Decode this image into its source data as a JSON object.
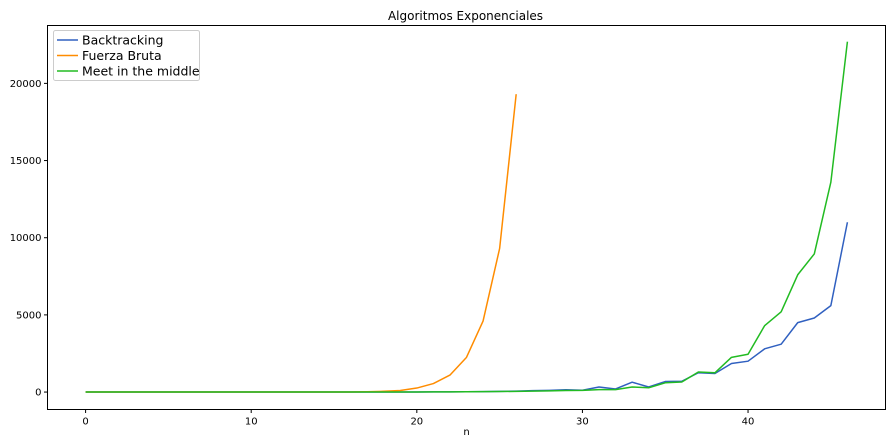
{
  "chart_data": {
    "type": "line",
    "title": "Algoritmos Exponenciales",
    "xlabel": "n",
    "ylabel": "",
    "xlim": [
      -2.3,
      48.3
    ],
    "ylim": [
      -1130,
      23750
    ],
    "xticks": [
      0,
      10,
      20,
      30,
      40
    ],
    "yticks": [
      0,
      5000,
      10000,
      15000,
      20000
    ],
    "grid": false,
    "legend_position": "top-left",
    "series": [
      {
        "name": "Backtracking",
        "color": "#3060c0",
        "x": [
          0,
          1,
          2,
          3,
          4,
          5,
          6,
          7,
          8,
          9,
          10,
          11,
          12,
          13,
          14,
          15,
          16,
          17,
          18,
          19,
          20,
          21,
          22,
          23,
          24,
          25,
          26,
          27,
          28,
          29,
          30,
          31,
          32,
          33,
          34,
          35,
          36,
          37,
          38,
          39,
          40,
          41,
          42,
          43,
          44,
          45,
          46
        ],
        "y": [
          0,
          0,
          0,
          0,
          0,
          0,
          0,
          0,
          0,
          0,
          0,
          0,
          0,
          0,
          0,
          1,
          1,
          2,
          3,
          5,
          8,
          10,
          15,
          20,
          30,
          45,
          60,
          90,
          110,
          150,
          120,
          330,
          200,
          640,
          330,
          680,
          700,
          1250,
          1200,
          1850,
          2000,
          2800,
          3100,
          4500,
          4800,
          5600,
          11000
        ]
      },
      {
        "name": "Fuerza Bruta",
        "color": "#ff8c00",
        "x": [
          0,
          1,
          2,
          3,
          4,
          5,
          6,
          7,
          8,
          9,
          10,
          11,
          12,
          13,
          14,
          15,
          16,
          17,
          18,
          19,
          20,
          21,
          22,
          23,
          24,
          25,
          26
        ],
        "y": [
          0,
          0,
          0,
          0,
          0,
          0,
          0,
          0,
          0,
          0,
          0,
          0,
          0,
          0,
          1,
          3,
          7,
          20,
          50,
          100,
          260,
          550,
          1100,
          2250,
          4600,
          9300,
          19300
        ]
      },
      {
        "name": "Meet in the middle",
        "color": "#22bb22",
        "x": [
          0,
          1,
          2,
          3,
          4,
          5,
          6,
          7,
          8,
          9,
          10,
          11,
          12,
          13,
          14,
          15,
          16,
          17,
          18,
          19,
          20,
          21,
          22,
          23,
          24,
          25,
          26,
          27,
          28,
          29,
          30,
          31,
          32,
          33,
          34,
          35,
          36,
          37,
          38,
          39,
          40,
          41,
          42,
          43,
          44,
          45,
          46
        ],
        "y": [
          0,
          0,
          0,
          0,
          0,
          0,
          0,
          0,
          0,
          0,
          0,
          0,
          0,
          0,
          0,
          1,
          1,
          2,
          3,
          5,
          8,
          10,
          15,
          20,
          25,
          35,
          45,
          60,
          75,
          100,
          110,
          160,
          160,
          330,
          280,
          600,
          650,
          1300,
          1250,
          2250,
          2450,
          4300,
          5200,
          7600,
          8950,
          13600,
          22700
        ]
      }
    ]
  }
}
